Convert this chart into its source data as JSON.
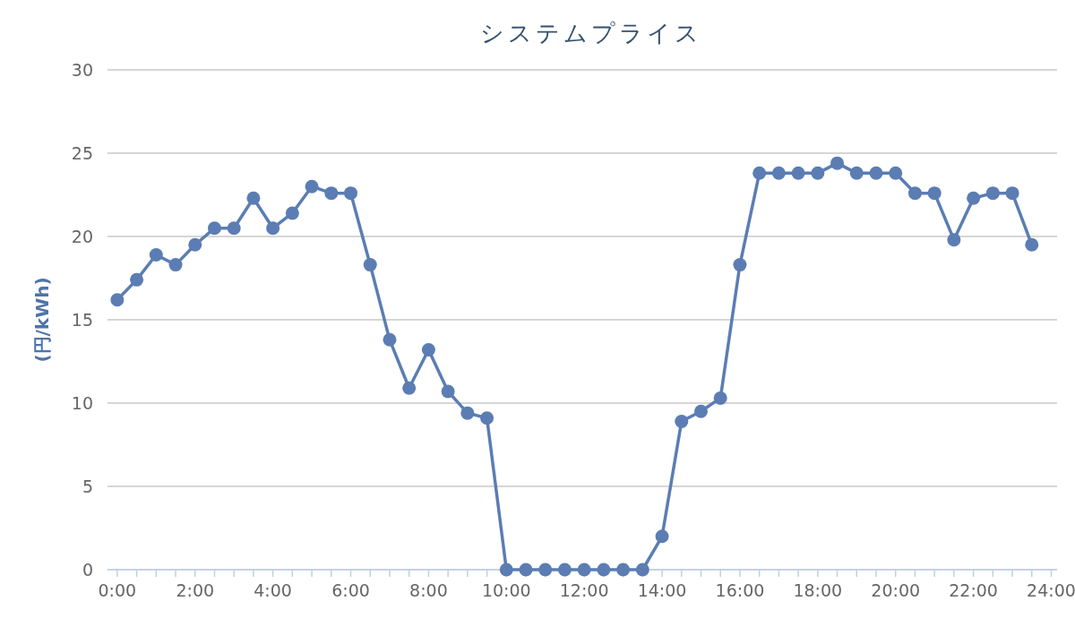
{
  "chart_data": {
    "type": "line",
    "title": "システムプライス",
    "ylabel": "(円/kWh)",
    "x": [
      0,
      0.5,
      1,
      1.5,
      2,
      2.5,
      3,
      3.5,
      4,
      4.5,
      5,
      5.5,
      6,
      6.5,
      7,
      7.5,
      8,
      8.5,
      9,
      9.5,
      10,
      10.5,
      11,
      11.5,
      12,
      12.5,
      13,
      13.5,
      14,
      14.5,
      15,
      15.5,
      16,
      16.5,
      17,
      17.5,
      18,
      18.5,
      19,
      19.5,
      20,
      20.5,
      21,
      21.5,
      22,
      22.5,
      23,
      23.5
    ],
    "series": [
      {
        "color": "#5b7db3",
        "values": [
          16.2,
          17.4,
          18.9,
          18.3,
          19.5,
          20.5,
          20.5,
          22.3,
          20.5,
          21.4,
          23.0,
          22.6,
          22.6,
          18.3,
          13.8,
          10.9,
          13.2,
          10.7,
          9.4,
          9.1,
          0,
          0,
          0,
          0,
          0,
          0,
          0,
          0,
          2.0,
          8.9,
          9.5,
          10.3,
          18.3,
          23.8,
          23.8,
          23.8,
          23.8,
          24.4,
          23.8,
          23.8,
          23.8,
          22.6,
          22.6,
          19.8,
          22.3,
          22.6,
          22.6,
          19.5
        ]
      }
    ],
    "xlim": [
      -0.25,
      24.15
    ],
    "ylim": [
      0,
      30
    ],
    "yticks": [
      0,
      5,
      10,
      15,
      20,
      25,
      30
    ],
    "xticks": [
      {
        "value": 0,
        "label": "0:00"
      },
      {
        "value": 0.5,
        "label": null
      },
      {
        "value": 1,
        "label": null
      },
      {
        "value": 1.5,
        "label": null
      },
      {
        "value": 2,
        "label": "2:00"
      },
      {
        "value": 2.5,
        "label": null
      },
      {
        "value": 3,
        "label": null
      },
      {
        "value": 3.5,
        "label": null
      },
      {
        "value": 4,
        "label": "4:00"
      },
      {
        "value": 4.5,
        "label": null
      },
      {
        "value": 5,
        "label": null
      },
      {
        "value": 5.5,
        "label": null
      },
      {
        "value": 6,
        "label": "6:00"
      },
      {
        "value": 6.5,
        "label": null
      },
      {
        "value": 7,
        "label": null
      },
      {
        "value": 7.5,
        "label": null
      },
      {
        "value": 8,
        "label": "8:00"
      },
      {
        "value": 8.5,
        "label": null
      },
      {
        "value": 9,
        "label": null
      },
      {
        "value": 9.5,
        "label": null
      },
      {
        "value": 10,
        "label": "10:00"
      },
      {
        "value": 10.5,
        "label": null
      },
      {
        "value": 11,
        "label": null
      },
      {
        "value": 11.5,
        "label": null
      },
      {
        "value": 12,
        "label": "12:00"
      },
      {
        "value": 12.5,
        "label": null
      },
      {
        "value": 13,
        "label": null
      },
      {
        "value": 13.5,
        "label": null
      },
      {
        "value": 14,
        "label": "14:00"
      },
      {
        "value": 14.5,
        "label": null
      },
      {
        "value": 15,
        "label": null
      },
      {
        "value": 15.5,
        "label": null
      },
      {
        "value": 16,
        "label": "16:00"
      },
      {
        "value": 16.5,
        "label": null
      },
      {
        "value": 17,
        "label": null
      },
      {
        "value": 17.5,
        "label": null
      },
      {
        "value": 18,
        "label": "18:00"
      },
      {
        "value": 18.5,
        "label": null
      },
      {
        "value": 19,
        "label": null
      },
      {
        "value": 19.5,
        "label": null
      },
      {
        "value": 20,
        "label": "20:00"
      },
      {
        "value": 20.5,
        "label": null
      },
      {
        "value": 21,
        "label": null
      },
      {
        "value": 21.5,
        "label": null
      },
      {
        "value": 22,
        "label": "22:00"
      },
      {
        "value": 22.5,
        "label": null
      },
      {
        "value": 23,
        "label": null
      },
      {
        "value": 23.5,
        "label": null
      },
      {
        "value": 24,
        "label": "24:00"
      }
    ],
    "grid": "y",
    "marker": "circle",
    "line_style": "solid"
  }
}
